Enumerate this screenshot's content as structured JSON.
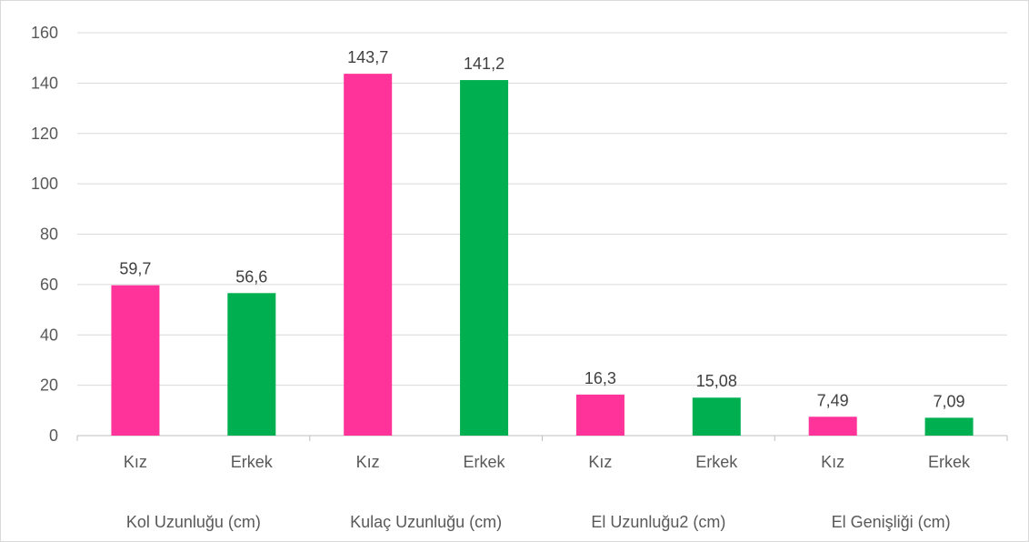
{
  "chart_data": {
    "type": "bar",
    "ylim": [
      0,
      160
    ],
    "yticks": [
      0,
      20,
      40,
      60,
      80,
      100,
      120,
      140,
      160
    ],
    "grid": true,
    "legend": "none",
    "bars": [
      {
        "group": "Kol Uzunluğu (cm)",
        "category": "Kız",
        "value": 59.7,
        "label": "59,7",
        "color": "#FF3399"
      },
      {
        "group": "Kol Uzunluğu (cm)",
        "category": "Erkek",
        "value": 56.6,
        "label": "56,6",
        "color": "#00B050"
      },
      {
        "group": "Kulaç Uzunluğu (cm)",
        "category": "Kız",
        "value": 143.7,
        "label": "143,7",
        "color": "#FF3399"
      },
      {
        "group": "Kulaç Uzunluğu (cm)",
        "category": "Erkek",
        "value": 141.2,
        "label": "141,2",
        "color": "#00B050"
      },
      {
        "group": "El Uzunluğu2 (cm)",
        "category": "Kız",
        "value": 16.3,
        "label": "16,3",
        "color": "#FF3399"
      },
      {
        "group": "El Uzunluğu2 (cm)",
        "category": "Erkek",
        "value": 15.08,
        "label": "15,08",
        "color": "#00B050"
      },
      {
        "group": "El Genişliği (cm)",
        "category": "Kız",
        "value": 7.49,
        "label": "7,49",
        "color": "#FF3399"
      },
      {
        "group": "El Genişliği (cm)",
        "category": "Erkek",
        "value": 7.09,
        "label": "7,09",
        "color": "#00B050"
      }
    ],
    "groups": [
      "Kol Uzunluğu (cm)",
      "Kulaç Uzunluğu (cm)",
      "El Uzunluğu2 (cm)",
      "El Genişliği (cm)"
    ],
    "colors": {
      "Kız": "#FF3399",
      "Erkek": "#00B050",
      "grid": "#D9D9D9",
      "axis": "#BFBFBF"
    }
  }
}
